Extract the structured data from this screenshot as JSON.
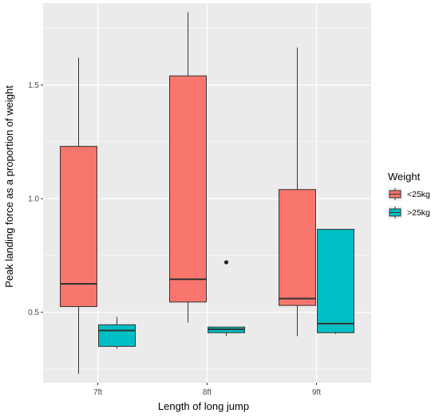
{
  "chart_data": {
    "type": "boxplot",
    "xlabel": "Length of long jump",
    "ylabel": "Peak landing force as a proportion of weight",
    "categories": [
      "7ft",
      "8ft",
      "9ft"
    ],
    "ylim": [
      0.19,
      1.86
    ],
    "yticks": [
      0.5,
      1.0,
      1.5
    ],
    "ytick_labels": [
      "0.5",
      "1.0",
      "1.5"
    ],
    "grid": true,
    "legend": {
      "title": "Weight",
      "position": "right"
    },
    "series": [
      {
        "name": "<25kg",
        "color": "#F8766D",
        "boxes": [
          {
            "category": "7ft",
            "min": 0.23,
            "q1": 0.525,
            "median": 0.625,
            "q3": 1.23,
            "max": 1.62,
            "outliers": []
          },
          {
            "category": "8ft",
            "min": 0.455,
            "q1": 0.545,
            "median": 0.645,
            "q3": 1.54,
            "max": 1.82,
            "outliers": []
          },
          {
            "category": "9ft",
            "min": 0.395,
            "q1": 0.53,
            "median": 0.56,
            "q3": 1.04,
            "max": 1.665,
            "outliers": []
          }
        ]
      },
      {
        "name": ">25kg",
        "color": "#00BFC4",
        "boxes": [
          {
            "category": "7ft",
            "min": 0.34,
            "q1": 0.35,
            "median": 0.42,
            "q3": 0.445,
            "max": 0.48,
            "outliers": []
          },
          {
            "category": "8ft",
            "min": 0.395,
            "q1": 0.41,
            "median": 0.425,
            "q3": 0.435,
            "max": 0.435,
            "outliers": [
              0.72
            ]
          },
          {
            "category": "9ft",
            "min": 0.405,
            "q1": 0.41,
            "median": 0.45,
            "q3": 0.865,
            "max": 0.865,
            "outliers": []
          }
        ]
      }
    ]
  }
}
